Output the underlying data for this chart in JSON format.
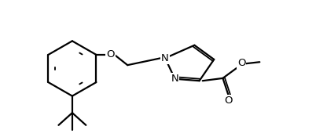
{
  "bg_color": "#ffffff",
  "line_color": "#000000",
  "line_width": 1.6,
  "font_size": 9.5,
  "figsize": [
    4.16,
    1.75
  ],
  "dpi": 100,
  "xlim": [
    0,
    10
  ],
  "ylim": [
    0,
    4.2
  ]
}
